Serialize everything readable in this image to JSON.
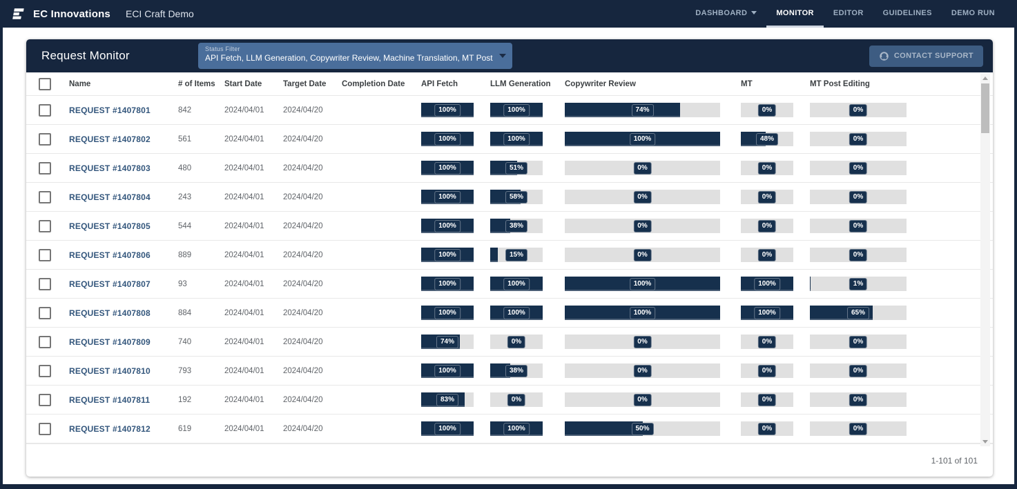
{
  "topbar": {
    "brand": "EC Innovations",
    "app_title": "ECI Craft Demo",
    "nav": [
      {
        "label": "DASHBOARD",
        "has_caret": true,
        "active": false
      },
      {
        "label": "MONITOR",
        "has_caret": false,
        "active": true
      },
      {
        "label": "EDITOR",
        "has_caret": false,
        "active": false
      },
      {
        "label": "GUIDELINES",
        "has_caret": false,
        "active": false
      },
      {
        "label": "DEMO RUN",
        "has_caret": false,
        "active": false
      }
    ]
  },
  "monitor": {
    "title": "Request Monitor",
    "status_filter": {
      "label": "Status Filter",
      "value": "API Fetch, LLM Generation, Copywriter Review, Machine Translation, MT Post Editing",
      "caret_icon": "chevron-down-icon"
    },
    "contact_support": {
      "label": "CONTACT SUPPORT",
      "icon": "support-agent-icon"
    },
    "columns": {
      "name": "Name",
      "items": "# of Items",
      "start": "Start Date",
      "target": "Target Date",
      "completion": "Completion Date",
      "api": "API Fetch",
      "llm": "LLM Generation",
      "cr": "Copywriter Review",
      "mt": "MT",
      "mtpe": "MT Post Editing"
    },
    "rows": [
      {
        "name": "REQUEST #1407801",
        "items": "842",
        "start_date": "2024/04/01",
        "target_date": "2024/04/20",
        "completion_date": "",
        "api_fetch": 100,
        "llm_generation": 100,
        "copywriter_review": 74,
        "mt": 0,
        "mt_post_editing": 0
      },
      {
        "name": "REQUEST #1407802",
        "items": "561",
        "start_date": "2024/04/01",
        "target_date": "2024/04/20",
        "completion_date": "",
        "api_fetch": 100,
        "llm_generation": 100,
        "copywriter_review": 100,
        "mt": 48,
        "mt_post_editing": 0
      },
      {
        "name": "REQUEST #1407803",
        "items": "480",
        "start_date": "2024/04/01",
        "target_date": "2024/04/20",
        "completion_date": "",
        "api_fetch": 100,
        "llm_generation": 51,
        "copywriter_review": 0,
        "mt": 0,
        "mt_post_editing": 0
      },
      {
        "name": "REQUEST #1407804",
        "items": "243",
        "start_date": "2024/04/01",
        "target_date": "2024/04/20",
        "completion_date": "",
        "api_fetch": 100,
        "llm_generation": 58,
        "copywriter_review": 0,
        "mt": 0,
        "mt_post_editing": 0
      },
      {
        "name": "REQUEST #1407805",
        "items": "544",
        "start_date": "2024/04/01",
        "target_date": "2024/04/20",
        "completion_date": "",
        "api_fetch": 100,
        "llm_generation": 38,
        "copywriter_review": 0,
        "mt": 0,
        "mt_post_editing": 0
      },
      {
        "name": "REQUEST #1407806",
        "items": "889",
        "start_date": "2024/04/01",
        "target_date": "2024/04/20",
        "completion_date": "",
        "api_fetch": 100,
        "llm_generation": 15,
        "copywriter_review": 0,
        "mt": 0,
        "mt_post_editing": 0
      },
      {
        "name": "REQUEST #1407807",
        "items": "93",
        "start_date": "2024/04/01",
        "target_date": "2024/04/20",
        "completion_date": "",
        "api_fetch": 100,
        "llm_generation": 100,
        "copywriter_review": 100,
        "mt": 100,
        "mt_post_editing": 1
      },
      {
        "name": "REQUEST #1407808",
        "items": "884",
        "start_date": "2024/04/01",
        "target_date": "2024/04/20",
        "completion_date": "",
        "api_fetch": 100,
        "llm_generation": 100,
        "copywriter_review": 100,
        "mt": 100,
        "mt_post_editing": 65
      },
      {
        "name": "REQUEST #1407809",
        "items": "740",
        "start_date": "2024/04/01",
        "target_date": "2024/04/20",
        "completion_date": "",
        "api_fetch": 74,
        "llm_generation": 0,
        "copywriter_review": 0,
        "mt": 0,
        "mt_post_editing": 0
      },
      {
        "name": "REQUEST #1407810",
        "items": "793",
        "start_date": "2024/04/01",
        "target_date": "2024/04/20",
        "completion_date": "",
        "api_fetch": 100,
        "llm_generation": 38,
        "copywriter_review": 0,
        "mt": 0,
        "mt_post_editing": 0
      },
      {
        "name": "REQUEST #1407811",
        "items": "192",
        "start_date": "2024/04/01",
        "target_date": "2024/04/20",
        "completion_date": "",
        "api_fetch": 83,
        "llm_generation": 0,
        "copywriter_review": 0,
        "mt": 0,
        "mt_post_editing": 0
      },
      {
        "name": "REQUEST #1407812",
        "items": "619",
        "start_date": "2024/04/01",
        "target_date": "2024/04/20",
        "completion_date": "",
        "api_fetch": 100,
        "llm_generation": 100,
        "copywriter_review": 50,
        "mt": 0,
        "mt_post_editing": 0
      }
    ],
    "pagination": "1-101 of 101"
  },
  "colors": {
    "navy": "#16263E",
    "bar-navy": "#16304D",
    "filter-bg": "#4A6E9B",
    "btn-bg": "#3D5C82",
    "link": "#33567C",
    "track": "#E0E0E0",
    "divider": "#E8E8E8",
    "nav-text": "#9FB0C3"
  }
}
